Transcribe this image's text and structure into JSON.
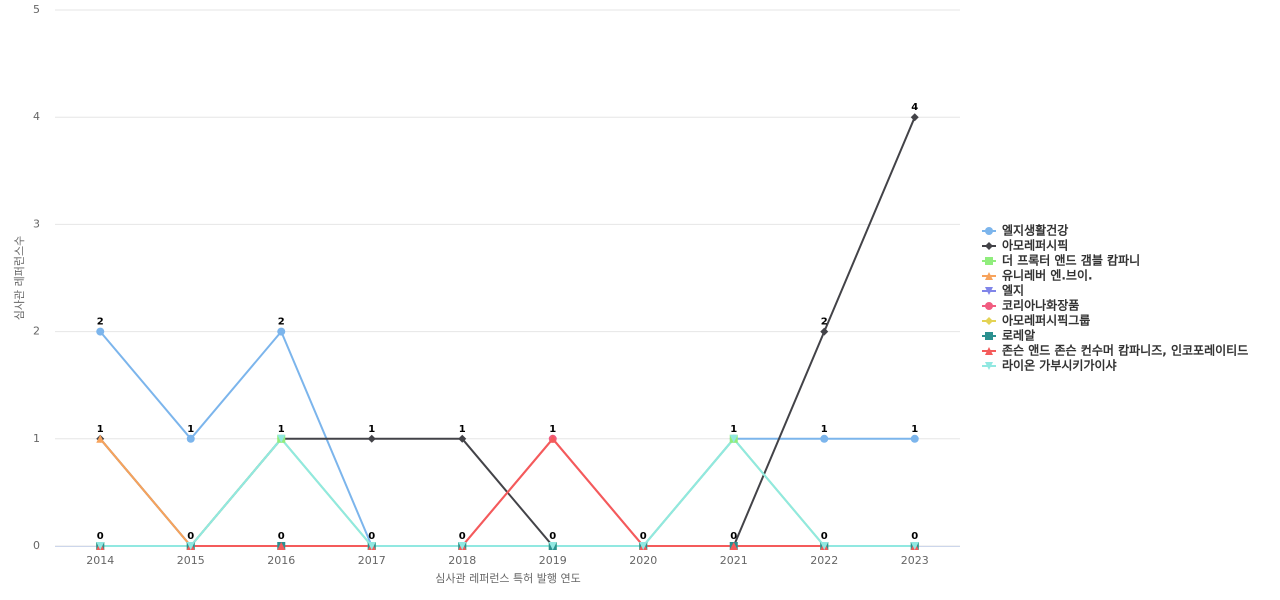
{
  "chart_data": {
    "type": "line",
    "x_label": "심사관 레퍼런스 특허 발행 연도",
    "y_label": "심사관 레퍼런스수",
    "categories": [
      "2014",
      "2015",
      "2016",
      "2017",
      "2018",
      "2019",
      "2020",
      "2021",
      "2022",
      "2023"
    ],
    "ylim": [
      0,
      5
    ],
    "yticks": [
      0,
      1,
      2,
      3,
      4,
      5
    ],
    "grid": true,
    "series": [
      {
        "name": "엘지생활건강",
        "color": "#7cb5ec",
        "marker": "circle",
        "values": [
          2,
          1,
          2,
          0,
          0,
          0,
          0,
          1,
          1,
          1
        ]
      },
      {
        "name": "아모레퍼시픽",
        "color": "#434348",
        "marker": "diamond",
        "values": [
          1,
          0,
          1,
          1,
          1,
          0,
          0,
          0,
          2,
          4
        ]
      },
      {
        "name": "더 프록터 앤드 갬블 캄파니",
        "color": "#90ed7d",
        "marker": "square",
        "values": [
          0,
          0,
          1,
          0,
          0,
          0,
          0,
          1,
          0,
          0
        ]
      },
      {
        "name": "유니레버 엔.브이.",
        "color": "#f7a35c",
        "marker": "triangle",
        "values": [
          1,
          0,
          0,
          0,
          0,
          0,
          0,
          0,
          0,
          0
        ]
      },
      {
        "name": "엘지",
        "color": "#8085e9",
        "marker": "triangle-down",
        "values": [
          0,
          0,
          0,
          0,
          0,
          0,
          0,
          0,
          0,
          0
        ]
      },
      {
        "name": "코리아나화장품",
        "color": "#f15c80",
        "marker": "circle",
        "values": [
          0,
          0,
          0,
          0,
          0,
          1,
          0,
          0,
          0,
          0
        ]
      },
      {
        "name": "아모레퍼시픽그룹",
        "color": "#e4d354",
        "marker": "diamond",
        "values": [
          0,
          0,
          0,
          0,
          0,
          0,
          0,
          0,
          0,
          0
        ]
      },
      {
        "name": "로레알",
        "color": "#2b908f",
        "marker": "square",
        "values": [
          0,
          0,
          0,
          0,
          0,
          0,
          0,
          0,
          0,
          0
        ]
      },
      {
        "name": "존슨 앤드 존슨 컨수머 캄파니즈, 인코포레이티드",
        "color": "#f45b5b",
        "marker": "triangle",
        "values": [
          0,
          0,
          0,
          0,
          0,
          1,
          0,
          0,
          0,
          0
        ]
      },
      {
        "name": "라이온 가부시키가이샤",
        "color": "#91e8e1",
        "marker": "triangle-down",
        "values": [
          0,
          0,
          1,
          0,
          0,
          0,
          0,
          1,
          0,
          0
        ]
      }
    ]
  }
}
